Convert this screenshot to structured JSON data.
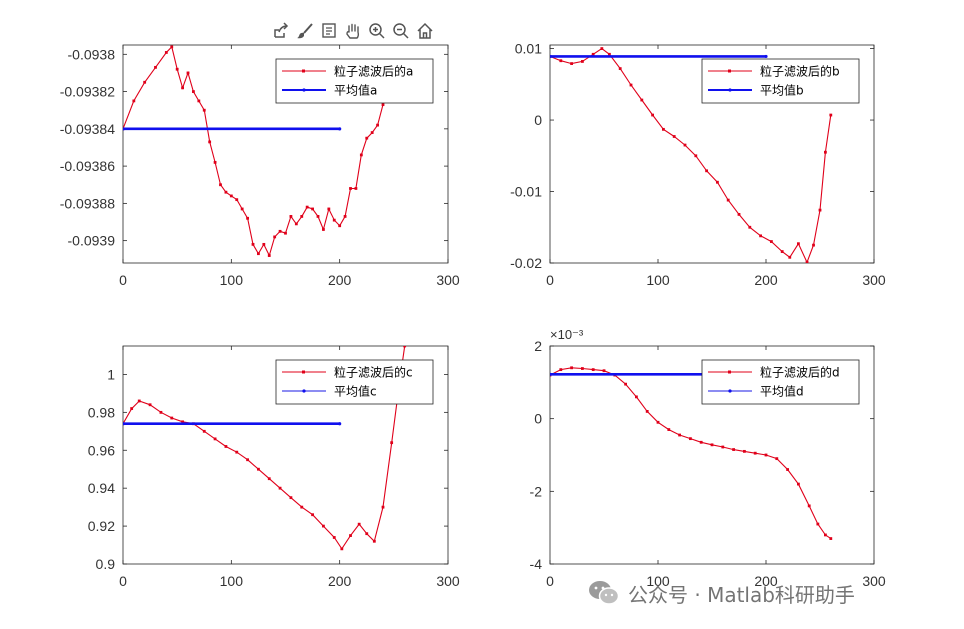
{
  "toolbar": {
    "icons": [
      "export-icon",
      "brush-icon",
      "data-tip-icon",
      "pan-hand-icon",
      "zoom-in-icon",
      "zoom-out-icon",
      "home-icon"
    ]
  },
  "watermark": {
    "text": "公众号 · Matlab科研助手",
    "icon": "wechat-icon"
  },
  "colors": {
    "filtered": "#e0001a",
    "mean": "#1010ee",
    "mean_light": "#8c8cf2",
    "axis": "#262626"
  },
  "chart_data": [
    {
      "type": "line",
      "panel": "top-left",
      "legend_position": "top-right",
      "xlim": [
        0,
        300
      ],
      "ylim": [
        -0.093912,
        -0.093795
      ],
      "xticks": [
        0,
        100,
        200,
        300
      ],
      "yticks": [
        -0.0938,
        -0.09382,
        -0.09384,
        -0.09386,
        -0.09388,
        -0.0939
      ],
      "xtick_labels": [
        "0",
        "100",
        "200",
        "300"
      ],
      "ytick_labels": [
        "-0.0938",
        "-0.09382",
        "-0.09384",
        "-0.09386",
        "-0.09388",
        "-0.0939"
      ],
      "series": [
        {
          "name": "粒子滤波后的a",
          "role": "filtered",
          "x": [
            0,
            10,
            20,
            30,
            40,
            45,
            50,
            55,
            60,
            65,
            70,
            75,
            80,
            85,
            90,
            95,
            100,
            105,
            110,
            115,
            120,
            125,
            130,
            135,
            140,
            145,
            150,
            155,
            160,
            165,
            170,
            175,
            180,
            185,
            190,
            195,
            200,
            205,
            210,
            215,
            220,
            225,
            230,
            235,
            240,
            245,
            250,
            255,
            260
          ],
          "y": [
            -0.09384,
            -0.093825,
            -0.093815,
            -0.093807,
            -0.093799,
            -0.093796,
            -0.093808,
            -0.093818,
            -0.09381,
            -0.09382,
            -0.093825,
            -0.09383,
            -0.093847,
            -0.093858,
            -0.09387,
            -0.093874,
            -0.093876,
            -0.093878,
            -0.093883,
            -0.093888,
            -0.093902,
            -0.093907,
            -0.093902,
            -0.093908,
            -0.093898,
            -0.093895,
            -0.093896,
            -0.093887,
            -0.093891,
            -0.093887,
            -0.093882,
            -0.093883,
            -0.093887,
            -0.093894,
            -0.093883,
            -0.093889,
            -0.093892,
            -0.093887,
            -0.093872,
            -0.093872,
            -0.093854,
            -0.093845,
            -0.093842,
            -0.093838,
            -0.093827,
            -0.093805,
            -0.093815,
            -0.093825,
            -0.093822
          ]
        },
        {
          "name": "平均值a",
          "role": "mean",
          "x": [
            0,
            200
          ],
          "y": [
            -0.09384,
            -0.09384
          ]
        }
      ]
    },
    {
      "type": "line",
      "panel": "top-right",
      "legend_position": "top-right",
      "xlim": [
        0,
        300
      ],
      "ylim": [
        -0.02,
        0.0105
      ],
      "xticks": [
        0,
        100,
        200,
        300
      ],
      "yticks": [
        0.01,
        0,
        -0.01,
        -0.02
      ],
      "xtick_labels": [
        "0",
        "100",
        "200",
        "300"
      ],
      "ytick_labels": [
        "0.01",
        "0",
        "-0.01",
        "-0.02"
      ],
      "series": [
        {
          "name": "粒子滤波后的b",
          "role": "filtered",
          "x": [
            0,
            10,
            20,
            30,
            40,
            48,
            55,
            65,
            75,
            85,
            95,
            105,
            115,
            125,
            135,
            145,
            155,
            165,
            175,
            185,
            195,
            205,
            215,
            222,
            230,
            238,
            244,
            250,
            255,
            260
          ],
          "y": [
            0.0089,
            0.0083,
            0.0079,
            0.0082,
            0.0092,
            0.01,
            0.0092,
            0.0072,
            0.0049,
            0.0028,
            0.0007,
            -0.0013,
            -0.0023,
            -0.0035,
            -0.005,
            -0.0071,
            -0.0087,
            -0.0112,
            -0.0132,
            -0.015,
            -0.0162,
            -0.017,
            -0.0184,
            -0.0192,
            -0.0173,
            -0.0199,
            -0.0175,
            -0.0126,
            -0.0045,
            0.0007
          ]
        },
        {
          "name": "平均值b",
          "role": "mean",
          "x": [
            0,
            200
          ],
          "y": [
            0.0089,
            0.0089
          ]
        }
      ]
    },
    {
      "type": "line",
      "panel": "bottom-left",
      "legend_position": "top-right",
      "xlim": [
        0,
        300
      ],
      "ylim": [
        0.9,
        1.015
      ],
      "xticks": [
        0,
        100,
        200,
        300
      ],
      "yticks": [
        1,
        0.98,
        0.96,
        0.94,
        0.92,
        0.9
      ],
      "xtick_labels": [
        "0",
        "100",
        "200",
        "300"
      ],
      "ytick_labels": [
        "1",
        "0.98",
        "0.96",
        "0.94",
        "0.92",
        "0.9"
      ],
      "series": [
        {
          "name": "粒子滤波后的c",
          "role": "filtered",
          "x": [
            0,
            8,
            15,
            25,
            35,
            45,
            55,
            65,
            75,
            85,
            95,
            105,
            115,
            125,
            135,
            145,
            155,
            165,
            175,
            185,
            195,
            202,
            210,
            218,
            225,
            232,
            240,
            248,
            255,
            260
          ],
          "y": [
            0.974,
            0.982,
            0.986,
            0.984,
            0.98,
            0.977,
            0.975,
            0.974,
            0.97,
            0.966,
            0.962,
            0.959,
            0.955,
            0.95,
            0.945,
            0.94,
            0.935,
            0.93,
            0.926,
            0.92,
            0.914,
            0.908,
            0.915,
            0.921,
            0.916,
            0.912,
            0.93,
            0.964,
            0.995,
            1.015
          ]
        },
        {
          "name": "平均值c",
          "role": "mean",
          "x": [
            0,
            200
          ],
          "y": [
            0.974,
            0.974
          ]
        }
      ]
    },
    {
      "type": "line",
      "panel": "bottom-right",
      "legend_position": "top-right",
      "exponent_label": "×10⁻³",
      "xlim": [
        0,
        300
      ],
      "ylim": [
        -4,
        2
      ],
      "xticks": [
        0,
        100,
        200,
        300
      ],
      "yticks": [
        2,
        0,
        -2,
        -4
      ],
      "xtick_labels": [
        "0",
        "100",
        "200",
        "300"
      ],
      "ytick_labels": [
        "2",
        "0",
        "-2",
        "-4"
      ],
      "series": [
        {
          "name": "粒子滤波后的d",
          "role": "filtered",
          "x": [
            0,
            10,
            20,
            30,
            40,
            50,
            60,
            70,
            80,
            90,
            100,
            110,
            120,
            130,
            140,
            150,
            160,
            170,
            180,
            190,
            200,
            210,
            220,
            230,
            240,
            248,
            255,
            260
          ],
          "y": [
            1.2,
            1.35,
            1.4,
            1.38,
            1.35,
            1.32,
            1.2,
            0.95,
            0.6,
            0.2,
            -0.1,
            -0.3,
            -0.45,
            -0.55,
            -0.65,
            -0.72,
            -0.78,
            -0.85,
            -0.9,
            -0.95,
            -1.0,
            -1.1,
            -1.4,
            -1.8,
            -2.4,
            -2.9,
            -3.2,
            -3.3
          ]
        },
        {
          "name": "平均值d",
          "role": "mean",
          "x": [
            0,
            200
          ],
          "y": [
            1.22,
            1.22
          ]
        }
      ]
    }
  ]
}
